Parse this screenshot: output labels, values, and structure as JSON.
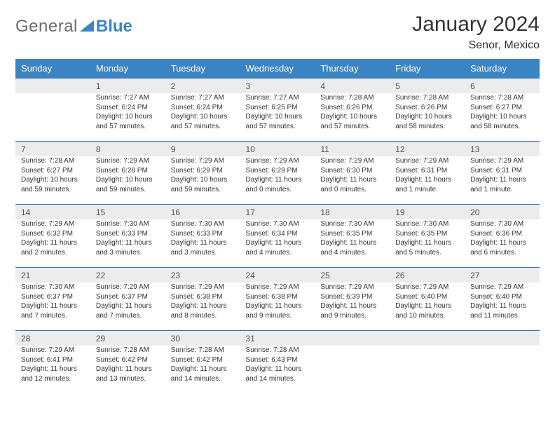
{
  "colors": {
    "brand_blue": "#3a84c4",
    "header_bg": "#3a84c4",
    "daynum_bg": "#ececec",
    "row_border": "#3a6fa8",
    "logo_gray": "#6b6b6b",
    "text": "#333333"
  },
  "logo": {
    "part1": "General",
    "part2": "Blue"
  },
  "title": "January 2024",
  "subtitle": "Senor, Mexico",
  "day_headers": [
    "Sunday",
    "Monday",
    "Tuesday",
    "Wednesday",
    "Thursday",
    "Friday",
    "Saturday"
  ],
  "weeks": [
    [
      {
        "num": "",
        "lines": []
      },
      {
        "num": "1",
        "lines": [
          "Sunrise: 7:27 AM",
          "Sunset: 6:24 PM",
          "Daylight: 10 hours",
          "and 57 minutes."
        ]
      },
      {
        "num": "2",
        "lines": [
          "Sunrise: 7:27 AM",
          "Sunset: 6:24 PM",
          "Daylight: 10 hours",
          "and 57 minutes."
        ]
      },
      {
        "num": "3",
        "lines": [
          "Sunrise: 7:27 AM",
          "Sunset: 6:25 PM",
          "Daylight: 10 hours",
          "and 57 minutes."
        ]
      },
      {
        "num": "4",
        "lines": [
          "Sunrise: 7:28 AM",
          "Sunset: 6:26 PM",
          "Daylight: 10 hours",
          "and 57 minutes."
        ]
      },
      {
        "num": "5",
        "lines": [
          "Sunrise: 7:28 AM",
          "Sunset: 6:26 PM",
          "Daylight: 10 hours",
          "and 58 minutes."
        ]
      },
      {
        "num": "6",
        "lines": [
          "Sunrise: 7:28 AM",
          "Sunset: 6:27 PM",
          "Daylight: 10 hours",
          "and 58 minutes."
        ]
      }
    ],
    [
      {
        "num": "7",
        "lines": [
          "Sunrise: 7:28 AM",
          "Sunset: 6:27 PM",
          "Daylight: 10 hours",
          "and 59 minutes."
        ]
      },
      {
        "num": "8",
        "lines": [
          "Sunrise: 7:29 AM",
          "Sunset: 6:28 PM",
          "Daylight: 10 hours",
          "and 59 minutes."
        ]
      },
      {
        "num": "9",
        "lines": [
          "Sunrise: 7:29 AM",
          "Sunset: 6:29 PM",
          "Daylight: 10 hours",
          "and 59 minutes."
        ]
      },
      {
        "num": "10",
        "lines": [
          "Sunrise: 7:29 AM",
          "Sunset: 6:29 PM",
          "Daylight: 11 hours",
          "and 0 minutes."
        ]
      },
      {
        "num": "11",
        "lines": [
          "Sunrise: 7:29 AM",
          "Sunset: 6:30 PM",
          "Daylight: 11 hours",
          "and 0 minutes."
        ]
      },
      {
        "num": "12",
        "lines": [
          "Sunrise: 7:29 AM",
          "Sunset: 6:31 PM",
          "Daylight: 11 hours",
          "and 1 minute."
        ]
      },
      {
        "num": "13",
        "lines": [
          "Sunrise: 7:29 AM",
          "Sunset: 6:31 PM",
          "Daylight: 11 hours",
          "and 1 minute."
        ]
      }
    ],
    [
      {
        "num": "14",
        "lines": [
          "Sunrise: 7:29 AM",
          "Sunset: 6:32 PM",
          "Daylight: 11 hours",
          "and 2 minutes."
        ]
      },
      {
        "num": "15",
        "lines": [
          "Sunrise: 7:30 AM",
          "Sunset: 6:33 PM",
          "Daylight: 11 hours",
          "and 3 minutes."
        ]
      },
      {
        "num": "16",
        "lines": [
          "Sunrise: 7:30 AM",
          "Sunset: 6:33 PM",
          "Daylight: 11 hours",
          "and 3 minutes."
        ]
      },
      {
        "num": "17",
        "lines": [
          "Sunrise: 7:30 AM",
          "Sunset: 6:34 PM",
          "Daylight: 11 hours",
          "and 4 minutes."
        ]
      },
      {
        "num": "18",
        "lines": [
          "Sunrise: 7:30 AM",
          "Sunset: 6:35 PM",
          "Daylight: 11 hours",
          "and 4 minutes."
        ]
      },
      {
        "num": "19",
        "lines": [
          "Sunrise: 7:30 AM",
          "Sunset: 6:35 PM",
          "Daylight: 11 hours",
          "and 5 minutes."
        ]
      },
      {
        "num": "20",
        "lines": [
          "Sunrise: 7:30 AM",
          "Sunset: 6:36 PM",
          "Daylight: 11 hours",
          "and 6 minutes."
        ]
      }
    ],
    [
      {
        "num": "21",
        "lines": [
          "Sunrise: 7:30 AM",
          "Sunset: 6:37 PM",
          "Daylight: 11 hours",
          "and 7 minutes."
        ]
      },
      {
        "num": "22",
        "lines": [
          "Sunrise: 7:29 AM",
          "Sunset: 6:37 PM",
          "Daylight: 11 hours",
          "and 7 minutes."
        ]
      },
      {
        "num": "23",
        "lines": [
          "Sunrise: 7:29 AM",
          "Sunset: 6:38 PM",
          "Daylight: 11 hours",
          "and 8 minutes."
        ]
      },
      {
        "num": "24",
        "lines": [
          "Sunrise: 7:29 AM",
          "Sunset: 6:38 PM",
          "Daylight: 11 hours",
          "and 9 minutes."
        ]
      },
      {
        "num": "25",
        "lines": [
          "Sunrise: 7:29 AM",
          "Sunset: 6:39 PM",
          "Daylight: 11 hours",
          "and 9 minutes."
        ]
      },
      {
        "num": "26",
        "lines": [
          "Sunrise: 7:29 AM",
          "Sunset: 6:40 PM",
          "Daylight: 11 hours",
          "and 10 minutes."
        ]
      },
      {
        "num": "27",
        "lines": [
          "Sunrise: 7:29 AM",
          "Sunset: 6:40 PM",
          "Daylight: 11 hours",
          "and 11 minutes."
        ]
      }
    ],
    [
      {
        "num": "28",
        "lines": [
          "Sunrise: 7:29 AM",
          "Sunset: 6:41 PM",
          "Daylight: 11 hours",
          "and 12 minutes."
        ]
      },
      {
        "num": "29",
        "lines": [
          "Sunrise: 7:28 AM",
          "Sunset: 6:42 PM",
          "Daylight: 11 hours",
          "and 13 minutes."
        ]
      },
      {
        "num": "30",
        "lines": [
          "Sunrise: 7:28 AM",
          "Sunset: 6:42 PM",
          "Daylight: 11 hours",
          "and 14 minutes."
        ]
      },
      {
        "num": "31",
        "lines": [
          "Sunrise: 7:28 AM",
          "Sunset: 6:43 PM",
          "Daylight: 11 hours",
          "and 14 minutes."
        ]
      },
      {
        "num": "",
        "lines": []
      },
      {
        "num": "",
        "lines": []
      },
      {
        "num": "",
        "lines": []
      }
    ]
  ]
}
